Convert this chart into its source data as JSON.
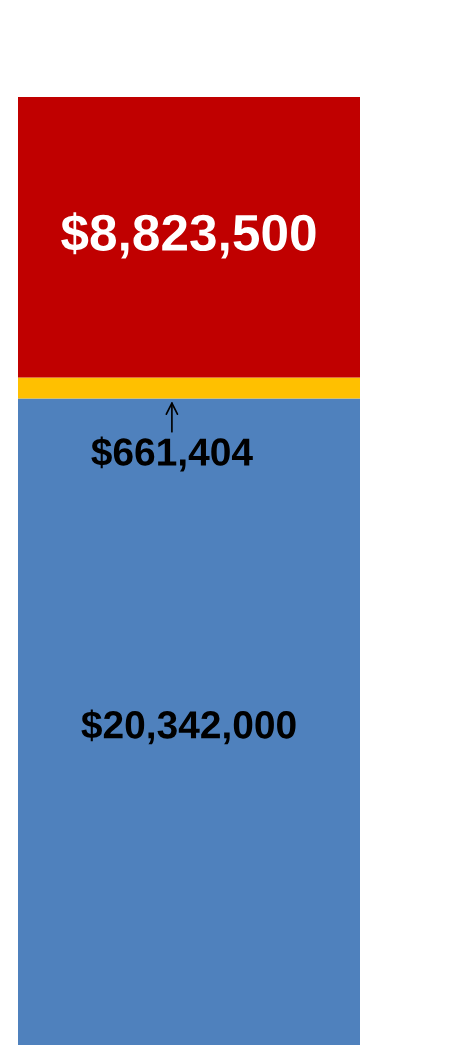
{
  "chart_data": {
    "type": "bar",
    "stacked": true,
    "categories": [
      null
    ],
    "series": [
      {
        "color": "#4f81bd",
        "values": [
          20342000
        ],
        "value_labels": [
          "$20,342,000"
        ]
      },
      {
        "color": "#ffc000",
        "values": [
          661404
        ],
        "value_labels": [
          "$661,404"
        ]
      },
      {
        "color": "#c00000",
        "values": [
          8823500
        ],
        "value_labels": [
          "$8,823,500"
        ]
      }
    ]
  }
}
